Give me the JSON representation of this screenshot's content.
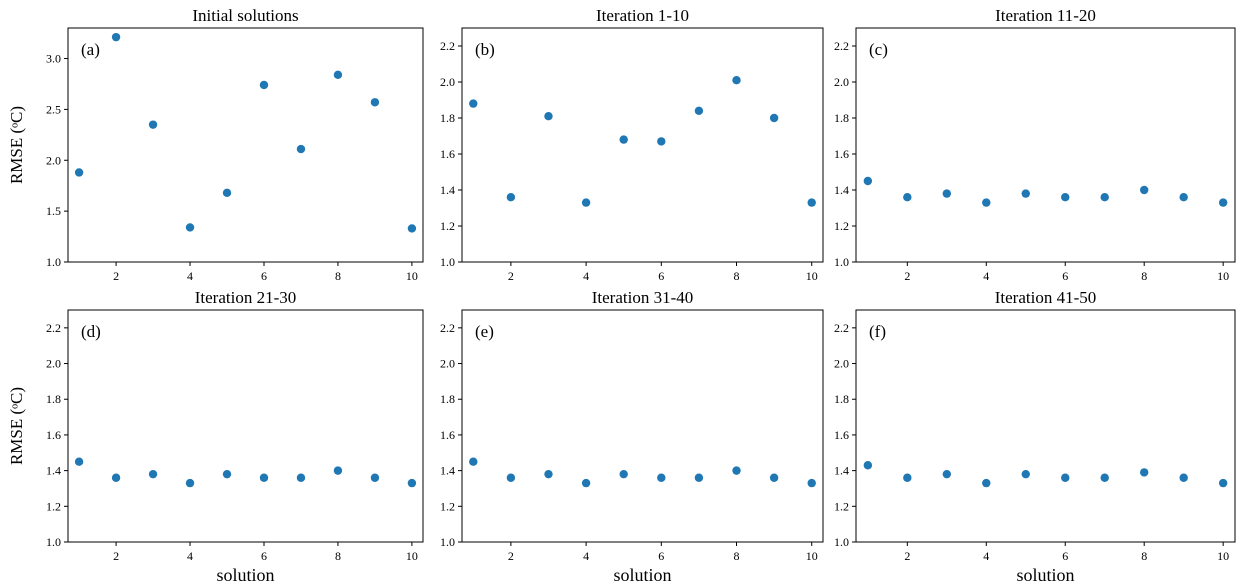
{
  "figure": {
    "marker_color": "#1f77b4"
  },
  "chart_data": [
    {
      "type": "scatter",
      "title": "Initial solutions",
      "panel_label": "(a)",
      "ylabel": "RMSE (ᵒC)",
      "xlabel": "",
      "x": [
        1,
        2,
        3,
        4,
        5,
        6,
        7,
        8,
        9,
        10
      ],
      "y": [
        1.88,
        3.21,
        2.35,
        1.34,
        1.68,
        2.74,
        2.11,
        2.84,
        2.57,
        1.33
      ],
      "xlim": [
        0.7,
        10.3
      ],
      "ylim": [
        1.0,
        3.3
      ],
      "xticks": [
        2,
        4,
        6,
        8,
        10
      ],
      "yticks": [
        1.0,
        1.5,
        2.0,
        2.5,
        3.0
      ],
      "ytick_labels": [
        "1.0",
        "1.5",
        "2.0",
        "2.5",
        "3.0"
      ]
    },
    {
      "type": "scatter",
      "title": "Iteration 1-10",
      "panel_label": "(b)",
      "ylabel": "",
      "xlabel": "",
      "x": [
        1,
        2,
        3,
        4,
        5,
        6,
        7,
        8,
        9,
        10
      ],
      "y": [
        1.88,
        1.36,
        1.81,
        1.33,
        1.68,
        1.67,
        1.84,
        2.01,
        1.8,
        1.33
      ],
      "xlim": [
        0.7,
        10.3
      ],
      "ylim": [
        1.0,
        2.3
      ],
      "xticks": [
        2,
        4,
        6,
        8,
        10
      ],
      "yticks": [
        1.0,
        1.2,
        1.4,
        1.6,
        1.8,
        2.0,
        2.2
      ],
      "ytick_labels": [
        "1.0",
        "1.2",
        "1.4",
        "1.6",
        "1.8",
        "2.0",
        "2.2"
      ]
    },
    {
      "type": "scatter",
      "title": "Iteration 11-20",
      "panel_label": "(c)",
      "ylabel": "",
      "xlabel": "",
      "x": [
        1,
        2,
        3,
        4,
        5,
        6,
        7,
        8,
        9,
        10
      ],
      "y": [
        1.45,
        1.36,
        1.38,
        1.33,
        1.38,
        1.36,
        1.36,
        1.4,
        1.36,
        1.33
      ],
      "xlim": [
        0.7,
        10.3
      ],
      "ylim": [
        1.0,
        2.3
      ],
      "xticks": [
        2,
        4,
        6,
        8,
        10
      ],
      "yticks": [
        1.0,
        1.2,
        1.4,
        1.6,
        1.8,
        2.0,
        2.2
      ],
      "ytick_labels": [
        "1.0",
        "1.2",
        "1.4",
        "1.6",
        "1.8",
        "2.0",
        "2.2"
      ]
    },
    {
      "type": "scatter",
      "title": "Iteration 21-30",
      "panel_label": "(d)",
      "ylabel": "RMSE (ᵒC)",
      "xlabel": "solution",
      "x": [
        1,
        2,
        3,
        4,
        5,
        6,
        7,
        8,
        9,
        10
      ],
      "y": [
        1.45,
        1.36,
        1.38,
        1.33,
        1.38,
        1.36,
        1.36,
        1.4,
        1.36,
        1.33
      ],
      "xlim": [
        0.7,
        10.3
      ],
      "ylim": [
        1.0,
        2.3
      ],
      "xticks": [
        2,
        4,
        6,
        8,
        10
      ],
      "yticks": [
        1.0,
        1.2,
        1.4,
        1.6,
        1.8,
        2.0,
        2.2
      ],
      "ytick_labels": [
        "1.0",
        "1.2",
        "1.4",
        "1.6",
        "1.8",
        "2.0",
        "2.2"
      ]
    },
    {
      "type": "scatter",
      "title": "Iteration 31-40",
      "panel_label": "(e)",
      "ylabel": "",
      "xlabel": "solution",
      "x": [
        1,
        2,
        3,
        4,
        5,
        6,
        7,
        8,
        9,
        10
      ],
      "y": [
        1.45,
        1.36,
        1.38,
        1.33,
        1.38,
        1.36,
        1.36,
        1.4,
        1.36,
        1.33
      ],
      "xlim": [
        0.7,
        10.3
      ],
      "ylim": [
        1.0,
        2.3
      ],
      "xticks": [
        2,
        4,
        6,
        8,
        10
      ],
      "yticks": [
        1.0,
        1.2,
        1.4,
        1.6,
        1.8,
        2.0,
        2.2
      ],
      "ytick_labels": [
        "1.0",
        "1.2",
        "1.4",
        "1.6",
        "1.8",
        "2.0",
        "2.2"
      ]
    },
    {
      "type": "scatter",
      "title": "Iteration 41-50",
      "panel_label": "(f)",
      "ylabel": "",
      "xlabel": "solution",
      "x": [
        1,
        2,
        3,
        4,
        5,
        6,
        7,
        8,
        9,
        10
      ],
      "y": [
        1.43,
        1.36,
        1.38,
        1.33,
        1.38,
        1.36,
        1.36,
        1.39,
        1.36,
        1.33
      ],
      "xlim": [
        0.7,
        10.3
      ],
      "ylim": [
        1.0,
        2.3
      ],
      "xticks": [
        2,
        4,
        6,
        8,
        10
      ],
      "yticks": [
        1.0,
        1.2,
        1.4,
        1.6,
        1.8,
        2.0,
        2.2
      ],
      "ytick_labels": [
        "1.0",
        "1.2",
        "1.4",
        "1.6",
        "1.8",
        "2.0",
        "2.2"
      ]
    }
  ]
}
